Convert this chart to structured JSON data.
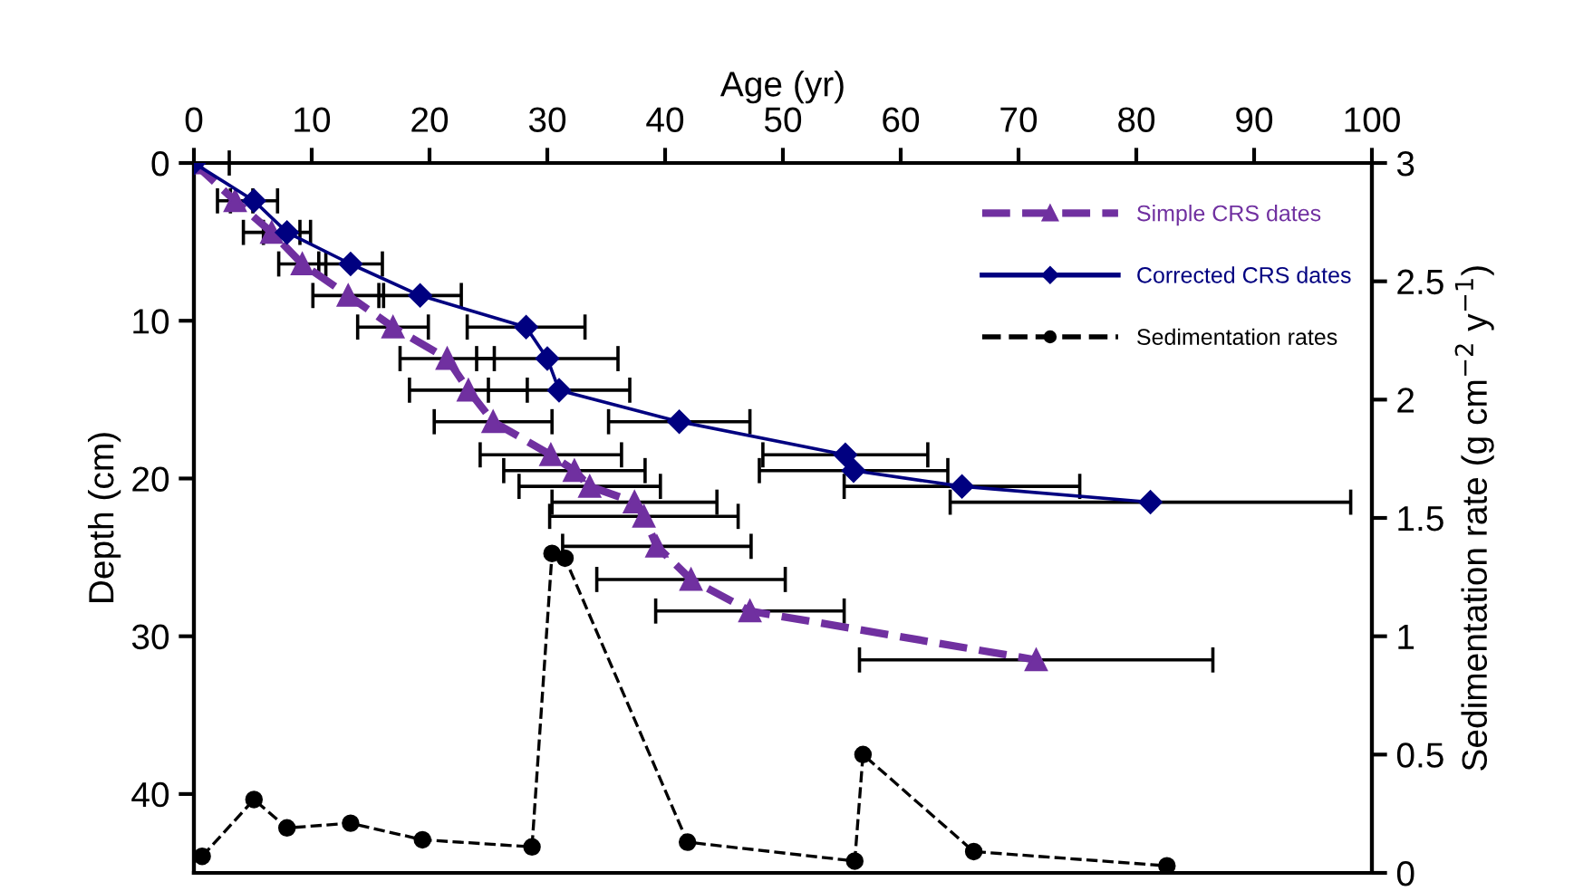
{
  "chart_data": {
    "type": "line",
    "xlabel": "Age (yr)",
    "ylabel": "Depth (cm)",
    "y2label": "Sedimentation rate (g cm$^{−2}$ y$^{−1}$)",
    "xlim": [
      0,
      100
    ],
    "xticks": [
      0,
      10,
      20,
      30,
      40,
      50,
      60,
      70,
      80,
      90,
      100
    ],
    "ylim": [
      45,
      0
    ],
    "yticks": [
      0,
      10,
      20,
      30,
      40
    ],
    "y2lim": [
      0,
      3
    ],
    "y2ticks": [
      0,
      0.5,
      1,
      1.5,
      2,
      2.5,
      3
    ],
    "legend": "top right",
    "grid": false,
    "series": [
      {
        "name": "Simple CRS dates",
        "color": "#7030a0",
        "marker": "triangle",
        "line_style": "dashed",
        "x": [
          0,
          3.5,
          6.6,
          9.2,
          13.1,
          16.9,
          21.5,
          23.3,
          25.4,
          30.3,
          32.3,
          33.6,
          37.4,
          38.2,
          39.3,
          42.2,
          47.2,
          71.5
        ],
        "values": [
          0,
          2.4,
          4.4,
          6.4,
          8.4,
          10.4,
          12.4,
          14.4,
          16.4,
          18.5,
          19.5,
          20.5,
          21.5,
          22.4,
          24.3,
          26.4,
          28.4,
          31.5
        ],
        "xerrors": [
          null,
          1.5,
          2.4,
          2,
          3,
          3,
          4,
          5,
          5,
          6,
          6,
          6,
          7,
          8,
          8,
          8,
          8,
          15
        ]
      },
      {
        "name": "Corrected CRS dates",
        "color": "#000080",
        "marker": "diamond",
        "line_style": "solid",
        "x": [
          0,
          5.1,
          7.9,
          13.3,
          19.2,
          28.2,
          30,
          31,
          41.2,
          55.3,
          56,
          65.2,
          81.2
        ],
        "values": [
          0,
          2.4,
          4.4,
          6.4,
          8.4,
          10.4,
          12.4,
          14.4,
          16.4,
          18.5,
          19.5,
          20.5,
          21.5
        ],
        "xerrors": [
          [
            0,
            3
          ],
          2,
          2,
          2.7,
          3.5,
          5,
          6,
          6,
          6,
          7,
          8,
          10,
          17
        ]
      },
      {
        "name": "Sedimentation rates",
        "color": "#000000",
        "marker": "circle",
        "line_style": "dashed",
        "axis": "y2",
        "x": [
          0.7,
          5.1,
          7.9,
          13.3,
          19.4,
          28.7,
          30.4,
          31.5,
          41.9,
          56.1,
          56.8,
          66.2,
          82.6
        ],
        "values": [
          0.07,
          0.31,
          0.19,
          0.21,
          0.14,
          0.11,
          1.35,
          1.33,
          0.13,
          0.05,
          0.5,
          0.09,
          0.03
        ]
      }
    ]
  }
}
